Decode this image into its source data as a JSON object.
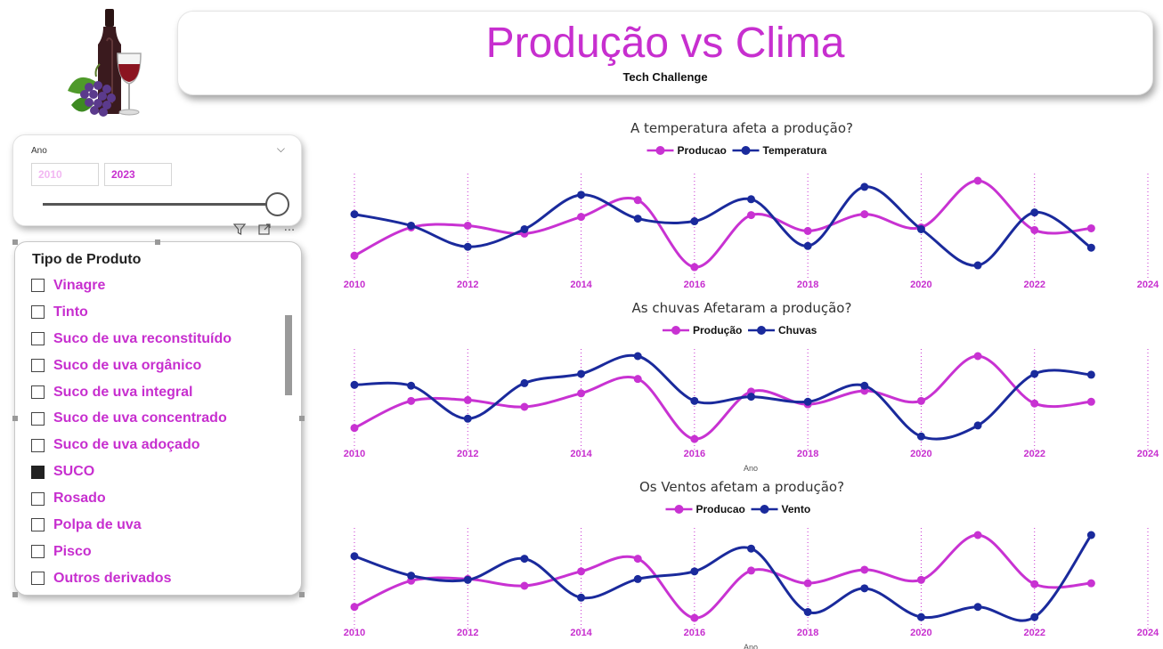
{
  "header": {
    "title": "Produção vs Clima",
    "subtitle": "Tech Challenge"
  },
  "logo": {
    "icon": "wine-bottle-glass-grapes-icon"
  },
  "year_filter": {
    "label": "Ano",
    "from": "2010",
    "to": "2023",
    "range": [
      2010,
      2023
    ]
  },
  "visual_toolbar": {
    "filter_icon": "filter-icon",
    "focus_icon": "focus-mode-icon",
    "more_icon": "more-options-icon"
  },
  "product_filter": {
    "title": "Tipo de Produto",
    "items": [
      {
        "label": "Vinagre",
        "checked": false
      },
      {
        "label": "Tinto",
        "checked": false
      },
      {
        "label": "Suco de uva reconstituído",
        "checked": false
      },
      {
        "label": "Suco de uva orgânico",
        "checked": false
      },
      {
        "label": "Suco de uva integral",
        "checked": false
      },
      {
        "label": "Suco de uva concentrado",
        "checked": false
      },
      {
        "label": "Suco de uva adoçado",
        "checked": false
      },
      {
        "label": "SUCO",
        "checked": true
      },
      {
        "label": "Rosado",
        "checked": false
      },
      {
        "label": "Polpa de uva",
        "checked": false
      },
      {
        "label": "Pisco",
        "checked": false
      },
      {
        "label": "Outros derivados",
        "checked": false
      }
    ]
  },
  "colors": {
    "production": "#c832d2",
    "climate": "#1a2a9c",
    "title": "#c72fcf"
  },
  "chart_data": [
    {
      "type": "line",
      "title": "A temperatura afeta a produção?",
      "xlabel": "",
      "x": [
        2010,
        2011,
        2012,
        2013,
        2014,
        2015,
        2016,
        2017,
        2018,
        2019,
        2020,
        2021,
        2022,
        2023
      ],
      "xticks": [
        "2010",
        "2012",
        "2014",
        "2016",
        "2018",
        "2020",
        "2022",
        "2024"
      ],
      "xlim": [
        2010,
        2024
      ],
      "grid": "vertical dotted",
      "legend": "top-center",
      "series": [
        {
          "name": "Producao",
          "values": [
            0.15,
            0.47,
            0.49,
            0.4,
            0.59,
            0.78,
            0.02,
            0.61,
            0.43,
            0.62,
            0.47,
            1.0,
            0.44,
            0.46
          ]
        },
        {
          "name": "Temperatura",
          "values": [
            0.62,
            0.49,
            0.25,
            0.45,
            0.84,
            0.57,
            0.54,
            0.79,
            0.26,
            0.93,
            0.45,
            0.04,
            0.64,
            0.24
          ]
        }
      ]
    },
    {
      "type": "line",
      "title": "As chuvas Afetaram a produção?",
      "xlabel": "Ano",
      "x": [
        2010,
        2011,
        2012,
        2013,
        2014,
        2015,
        2016,
        2017,
        2018,
        2019,
        2020,
        2021,
        2022,
        2023
      ],
      "xticks": [
        "2010",
        "2012",
        "2014",
        "2016",
        "2018",
        "2020",
        "2022",
        "2024"
      ],
      "xlim": [
        2010,
        2024
      ],
      "grid": "vertical dotted",
      "legend": "top-center",
      "series": [
        {
          "name": "Produção",
          "values": [
            0.15,
            0.47,
            0.48,
            0.4,
            0.56,
            0.73,
            0.02,
            0.58,
            0.43,
            0.59,
            0.47,
            1.0,
            0.44,
            0.46
          ]
        },
        {
          "name": "Chuvas",
          "values": [
            0.66,
            0.65,
            0.26,
            0.68,
            0.79,
            1.0,
            0.47,
            0.52,
            0.46,
            0.65,
            0.05,
            0.18,
            0.79,
            0.78
          ]
        }
      ]
    },
    {
      "type": "line",
      "title": "Os Ventos afetam a produção?",
      "xlabel": "Ano",
      "x": [
        2010,
        2011,
        2012,
        2013,
        2014,
        2015,
        2016,
        2017,
        2018,
        2019,
        2020,
        2021,
        2022,
        2023
      ],
      "xticks": [
        "2010",
        "2012",
        "2014",
        "2016",
        "2018",
        "2020",
        "2022",
        "2024"
      ],
      "xlim": [
        2010,
        2024
      ],
      "grid": "vertical dotted",
      "legend": "top-center",
      "series": [
        {
          "name": "Producao",
          "values": [
            0.15,
            0.46,
            0.48,
            0.4,
            0.57,
            0.72,
            0.02,
            0.58,
            0.43,
            0.59,
            0.47,
            1.0,
            0.42,
            0.43
          ]
        },
        {
          "name": "Vento",
          "values": [
            0.75,
            0.52,
            0.47,
            0.72,
            0.26,
            0.48,
            0.57,
            0.84,
            0.09,
            0.37,
            0.03,
            0.15,
            0.03,
            1.0
          ]
        }
      ]
    }
  ]
}
